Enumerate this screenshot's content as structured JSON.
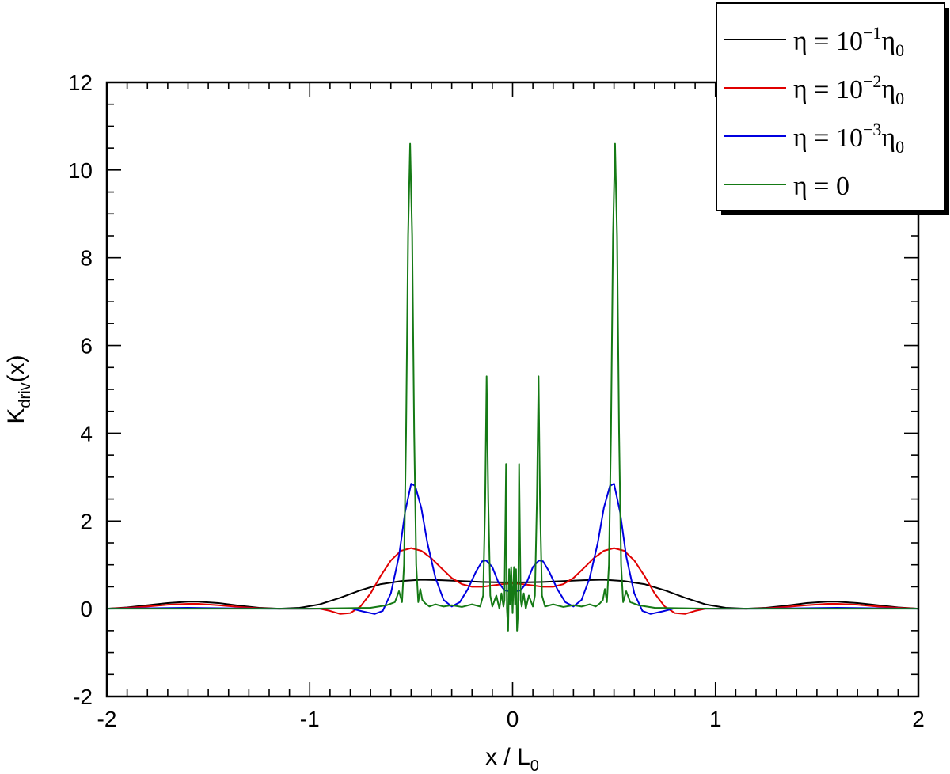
{
  "chart_data": {
    "type": "line",
    "xlabel": {
      "main": "x / L",
      "sub": "0"
    },
    "ylabel": {
      "main": "K",
      "sub": "driv",
      "suffix": "(x)"
    },
    "xlim": [
      -2,
      2
    ],
    "ylim": [
      -2,
      12
    ],
    "xticks": [
      -2,
      -1,
      0,
      1,
      2
    ],
    "yticks": [
      -2,
      0,
      2,
      4,
      6,
      8,
      10,
      12
    ],
    "xtick_labels": [
      "-2",
      "-1",
      "0",
      "1",
      "2"
    ],
    "ytick_labels": [
      "-2",
      "0",
      "2",
      "4",
      "6",
      "8",
      "10",
      "12"
    ],
    "grid": false,
    "legend_position": "top-right",
    "series": [
      {
        "name": "η = 10⁻¹η₀",
        "legend": {
          "lhs": "η = 10",
          "exp": "−1",
          "sym": "η",
          "sub": "0"
        },
        "color": "#000000",
        "points": [
          [
            -2,
            0
          ],
          [
            -1.9,
            0.03
          ],
          [
            -1.8,
            0.08
          ],
          [
            -1.7,
            0.13
          ],
          [
            -1.6,
            0.16
          ],
          [
            -1.55,
            0.16
          ],
          [
            -1.45,
            0.13
          ],
          [
            -1.35,
            0.07
          ],
          [
            -1.25,
            0.02
          ],
          [
            -1.15,
            0.0
          ],
          [
            -1.05,
            0.02
          ],
          [
            -0.95,
            0.1
          ],
          [
            -0.85,
            0.25
          ],
          [
            -0.75,
            0.42
          ],
          [
            -0.65,
            0.56
          ],
          [
            -0.55,
            0.63
          ],
          [
            -0.45,
            0.66
          ],
          [
            -0.35,
            0.65
          ],
          [
            -0.25,
            0.63
          ],
          [
            -0.15,
            0.61
          ],
          [
            -0.05,
            0.6
          ],
          [
            0,
            0.6
          ],
          [
            0.05,
            0.6
          ],
          [
            0.15,
            0.61
          ],
          [
            0.25,
            0.63
          ],
          [
            0.35,
            0.65
          ],
          [
            0.45,
            0.66
          ],
          [
            0.55,
            0.63
          ],
          [
            0.65,
            0.56
          ],
          [
            0.75,
            0.42
          ],
          [
            0.85,
            0.25
          ],
          [
            0.95,
            0.1
          ],
          [
            1.05,
            0.02
          ],
          [
            1.15,
            0.0
          ],
          [
            1.25,
            0.02
          ],
          [
            1.35,
            0.07
          ],
          [
            1.45,
            0.13
          ],
          [
            1.55,
            0.16
          ],
          [
            1.6,
            0.16
          ],
          [
            1.7,
            0.13
          ],
          [
            1.8,
            0.08
          ],
          [
            1.9,
            0.03
          ],
          [
            2,
            0
          ]
        ]
      },
      {
        "name": "η = 10⁻²η₀",
        "legend": {
          "lhs": "η = 10",
          "exp": "−2",
          "sym": "η",
          "sub": "0"
        },
        "color": "#e00000",
        "points": [
          [
            -2,
            0
          ],
          [
            -1.9,
            0.02
          ],
          [
            -1.8,
            0.05
          ],
          [
            -1.7,
            0.09
          ],
          [
            -1.6,
            0.11
          ],
          [
            -1.55,
            0.11
          ],
          [
            -1.45,
            0.08
          ],
          [
            -1.35,
            0.04
          ],
          [
            -1.25,
            0.01
          ],
          [
            -1.15,
            0.0
          ],
          [
            -1.05,
            0.0
          ],
          [
            -0.95,
            0.0
          ],
          [
            -0.9,
            -0.05
          ],
          [
            -0.85,
            -0.12
          ],
          [
            -0.8,
            -0.1
          ],
          [
            -0.75,
            0.05
          ],
          [
            -0.7,
            0.35
          ],
          [
            -0.65,
            0.75
          ],
          [
            -0.6,
            1.1
          ],
          [
            -0.55,
            1.32
          ],
          [
            -0.5,
            1.38
          ],
          [
            -0.45,
            1.32
          ],
          [
            -0.4,
            1.15
          ],
          [
            -0.35,
            0.92
          ],
          [
            -0.3,
            0.7
          ],
          [
            -0.25,
            0.56
          ],
          [
            -0.2,
            0.5
          ],
          [
            -0.15,
            0.5
          ],
          [
            -0.1,
            0.53
          ],
          [
            -0.05,
            0.56
          ],
          [
            0,
            0.58
          ],
          [
            0.05,
            0.56
          ],
          [
            0.1,
            0.53
          ],
          [
            0.15,
            0.5
          ],
          [
            0.2,
            0.5
          ],
          [
            0.25,
            0.56
          ],
          [
            0.3,
            0.7
          ],
          [
            0.35,
            0.92
          ],
          [
            0.4,
            1.15
          ],
          [
            0.45,
            1.32
          ],
          [
            0.5,
            1.38
          ],
          [
            0.55,
            1.32
          ],
          [
            0.6,
            1.1
          ],
          [
            0.65,
            0.75
          ],
          [
            0.7,
            0.35
          ],
          [
            0.75,
            0.05
          ],
          [
            0.8,
            -0.1
          ],
          [
            0.85,
            -0.12
          ],
          [
            0.9,
            -0.05
          ],
          [
            0.95,
            0.0
          ],
          [
            1.05,
            0.0
          ],
          [
            1.15,
            0.0
          ],
          [
            1.25,
            0.01
          ],
          [
            1.35,
            0.04
          ],
          [
            1.45,
            0.08
          ],
          [
            1.55,
            0.11
          ],
          [
            1.6,
            0.11
          ],
          [
            1.7,
            0.09
          ],
          [
            1.8,
            0.05
          ],
          [
            1.9,
            0.02
          ],
          [
            2,
            0
          ]
        ]
      },
      {
        "name": "η = 10⁻³η₀",
        "legend": {
          "lhs": "η = 10",
          "exp": "−3",
          "sym": "η",
          "sub": "0"
        },
        "color": "#0000e0",
        "points": [
          [
            -2,
            0
          ],
          [
            -1.6,
            0.02
          ],
          [
            -1.2,
            0.0
          ],
          [
            -0.9,
            0.0
          ],
          [
            -0.8,
            0.01
          ],
          [
            -0.74,
            -0.06
          ],
          [
            -0.68,
            -0.12
          ],
          [
            -0.64,
            -0.05
          ],
          [
            -0.6,
            0.35
          ],
          [
            -0.56,
            1.2
          ],
          [
            -0.53,
            2.2
          ],
          [
            -0.5,
            2.85
          ],
          [
            -0.48,
            2.8
          ],
          [
            -0.45,
            2.3
          ],
          [
            -0.42,
            1.5
          ],
          [
            -0.38,
            0.7
          ],
          [
            -0.34,
            0.2
          ],
          [
            -0.3,
            0.05
          ],
          [
            -0.26,
            0.15
          ],
          [
            -0.22,
            0.45
          ],
          [
            -0.18,
            0.85
          ],
          [
            -0.15,
            1.08
          ],
          [
            -0.13,
            1.1
          ],
          [
            -0.1,
            0.95
          ],
          [
            -0.07,
            0.6
          ],
          [
            -0.04,
            0.42
          ],
          [
            0,
            0.38
          ],
          [
            0.04,
            0.42
          ],
          [
            0.07,
            0.6
          ],
          [
            0.1,
            0.95
          ],
          [
            0.13,
            1.1
          ],
          [
            0.15,
            1.08
          ],
          [
            0.18,
            0.85
          ],
          [
            0.22,
            0.45
          ],
          [
            0.26,
            0.15
          ],
          [
            0.3,
            0.05
          ],
          [
            0.34,
            0.2
          ],
          [
            0.38,
            0.7
          ],
          [
            0.42,
            1.5
          ],
          [
            0.45,
            2.3
          ],
          [
            0.48,
            2.8
          ],
          [
            0.5,
            2.85
          ],
          [
            0.53,
            2.2
          ],
          [
            0.56,
            1.2
          ],
          [
            0.6,
            0.35
          ],
          [
            0.64,
            -0.05
          ],
          [
            0.68,
            -0.12
          ],
          [
            0.74,
            -0.06
          ],
          [
            0.8,
            0.01
          ],
          [
            0.9,
            0.0
          ],
          [
            1.2,
            0.0
          ],
          [
            1.6,
            0.02
          ],
          [
            2,
            0
          ]
        ]
      },
      {
        "name": "η = 0",
        "legend": {
          "lhs": "η = 0",
          "exp": "",
          "sym": "",
          "sub": ""
        },
        "color": "#157a15",
        "points": [
          [
            -2,
            0
          ],
          [
            -1.5,
            0.0
          ],
          [
            -1.0,
            0.0
          ],
          [
            -0.7,
            0.02
          ],
          [
            -0.62,
            0.08
          ],
          [
            -0.58,
            0.15
          ],
          [
            -0.56,
            0.4
          ],
          [
            -0.545,
            0.15
          ],
          [
            -0.535,
            1.0
          ],
          [
            -0.525,
            4.0
          ],
          [
            -0.515,
            8.5
          ],
          [
            -0.505,
            10.6
          ],
          [
            -0.495,
            8.5
          ],
          [
            -0.485,
            4.0
          ],
          [
            -0.475,
            1.0
          ],
          [
            -0.465,
            0.15
          ],
          [
            -0.455,
            0.45
          ],
          [
            -0.445,
            0.2
          ],
          [
            -0.43,
            0.12
          ],
          [
            -0.41,
            0.05
          ],
          [
            -0.38,
            0.1
          ],
          [
            -0.34,
            0.05
          ],
          [
            -0.3,
            0.08
          ],
          [
            -0.25,
            0.04
          ],
          [
            -0.2,
            0.1
          ],
          [
            -0.16,
            0.05
          ],
          [
            -0.145,
            0.3
          ],
          [
            -0.135,
            2.5
          ],
          [
            -0.128,
            5.3
          ],
          [
            -0.12,
            2.5
          ],
          [
            -0.11,
            0.3
          ],
          [
            -0.1,
            0.05
          ],
          [
            -0.08,
            0.3
          ],
          [
            -0.065,
            0.0
          ],
          [
            -0.055,
            0.35
          ],
          [
            -0.045,
            0.05
          ],
          [
            -0.04,
            0.2
          ],
          [
            -0.032,
            3.3
          ],
          [
            -0.028,
            0.0
          ],
          [
            -0.022,
            -0.5
          ],
          [
            -0.017,
            0.9
          ],
          [
            -0.012,
            0.1
          ],
          [
            -0.007,
            0.95
          ],
          [
            0,
            -0.1
          ],
          [
            0.007,
            0.95
          ],
          [
            0.012,
            0.1
          ],
          [
            0.017,
            0.9
          ],
          [
            0.022,
            -0.5
          ],
          [
            0.028,
            0.0
          ],
          [
            0.032,
            3.3
          ],
          [
            0.04,
            0.2
          ],
          [
            0.045,
            0.05
          ],
          [
            0.055,
            0.35
          ],
          [
            0.065,
            0.0
          ],
          [
            0.08,
            0.3
          ],
          [
            0.1,
            0.05
          ],
          [
            0.11,
            0.3
          ],
          [
            0.12,
            2.5
          ],
          [
            0.128,
            5.3
          ],
          [
            0.135,
            2.5
          ],
          [
            0.145,
            0.3
          ],
          [
            0.16,
            0.05
          ],
          [
            0.2,
            0.1
          ],
          [
            0.25,
            0.04
          ],
          [
            0.3,
            0.08
          ],
          [
            0.34,
            0.05
          ],
          [
            0.38,
            0.1
          ],
          [
            0.41,
            0.05
          ],
          [
            0.43,
            0.12
          ],
          [
            0.445,
            0.2
          ],
          [
            0.455,
            0.45
          ],
          [
            0.465,
            0.15
          ],
          [
            0.475,
            1.0
          ],
          [
            0.485,
            4.0
          ],
          [
            0.495,
            8.5
          ],
          [
            0.505,
            10.6
          ],
          [
            0.515,
            8.5
          ],
          [
            0.525,
            4.0
          ],
          [
            0.535,
            1.0
          ],
          [
            0.545,
            0.15
          ],
          [
            0.56,
            0.4
          ],
          [
            0.58,
            0.15
          ],
          [
            0.62,
            0.08
          ],
          [
            0.7,
            0.02
          ],
          [
            1.0,
            0.0
          ],
          [
            1.5,
            0.0
          ],
          [
            2,
            0
          ]
        ]
      }
    ]
  }
}
